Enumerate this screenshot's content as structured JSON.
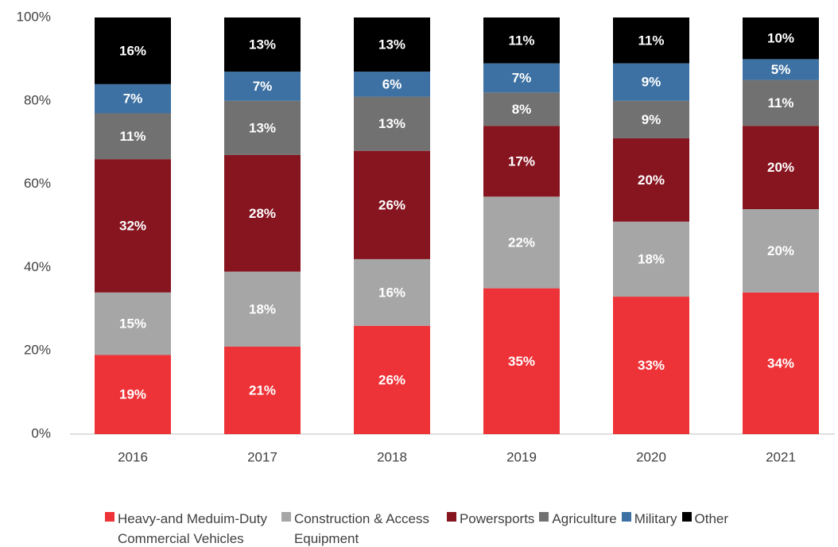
{
  "chart_data": {
    "type": "stacked_bar",
    "categories": [
      "2016",
      "2017",
      "2018",
      "2019",
      "2020",
      "2021"
    ],
    "series": [
      {
        "name": "Heavy-and Meduim-Duty Commercial Vehicles",
        "color": "#ee3338",
        "values": [
          19,
          21,
          26,
          35,
          33,
          34
        ],
        "value_labels": [
          "19%",
          "21%",
          "26%",
          "35%",
          "33%",
          "34%"
        ]
      },
      {
        "name": "Construction & Access Equipment",
        "color": "#a6a6a6",
        "values": [
          15,
          18,
          16,
          22,
          18,
          20
        ],
        "value_labels": [
          "15%",
          "18%",
          "16%",
          "22%",
          "18%",
          "20%"
        ]
      },
      {
        "name": "Powersports",
        "color": "#861520",
        "values": [
          32,
          28,
          26,
          17,
          20,
          20
        ],
        "value_labels": [
          "32%",
          "28%",
          "26%",
          "17%",
          "20%",
          "20%"
        ]
      },
      {
        "name": "Agriculture",
        "color": "#717171",
        "values": [
          11,
          13,
          13,
          8,
          9,
          11
        ],
        "value_labels": [
          "11%",
          "13%",
          "13%",
          "8%",
          "9%",
          "11%"
        ]
      },
      {
        "name": "Military",
        "color": "#3d71a3",
        "values": [
          7,
          7,
          6,
          7,
          9,
          5
        ],
        "value_labels": [
          "7%",
          "7%",
          "6%",
          "7%",
          "9%",
          "5%"
        ]
      },
      {
        "name": "Other",
        "color": "#000000",
        "values": [
          16,
          13,
          13,
          11,
          11,
          10
        ],
        "value_labels": [
          "16%",
          "13%",
          "13%",
          "11%",
          "11%",
          "10%"
        ]
      }
    ],
    "ylim": [
      0,
      100
    ],
    "yticks": [
      {
        "value": 0,
        "label": "0%"
      },
      {
        "value": 20,
        "label": "20%"
      },
      {
        "value": 40,
        "label": "40%"
      },
      {
        "value": 60,
        "label": "60%"
      },
      {
        "value": 80,
        "label": "80%"
      },
      {
        "value": 100,
        "label": "100%"
      }
    ],
    "grid": false,
    "legend": "bottom"
  }
}
